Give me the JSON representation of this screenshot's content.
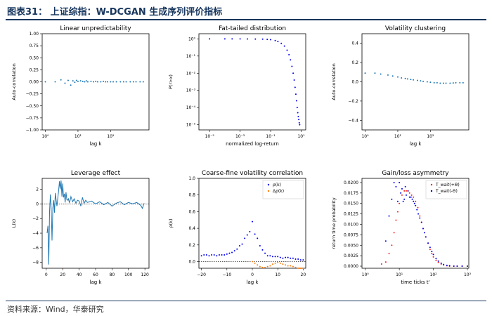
{
  "header": {
    "title": "图表31：  上证综指：W-DCGAN 生成序列评价指标"
  },
  "footer": {
    "source": "资料来源：Wind，华泰研究"
  },
  "colors": {
    "blue": "#1f77b4",
    "points": "#0000ee",
    "orange": "#ff7f0e",
    "red": "#ff2020",
    "navy": "#17365d"
  },
  "chart_data": [
    {
      "type": "scatter",
      "title": "Linear unpredictability",
      "xlabel": "lag k",
      "ylabel": "Auto-correlation",
      "xscale": "log",
      "xlim": [
        0.8,
        1500
      ],
      "ylim": [
        -1.0,
        1.0
      ],
      "xticks": [
        1,
        10,
        100
      ],
      "xticklabels": [
        "10⁰",
        "10¹",
        "10²"
      ],
      "yticks": [
        -1.0,
        -0.75,
        -0.5,
        -0.25,
        0.0,
        0.25,
        0.5,
        0.75,
        1.0
      ],
      "yticklabels": [
        "−1.00",
        "−0.75",
        "−0.50",
        "−0.25",
        "0.00",
        "0.25",
        "0.50",
        "0.75",
        "1.00"
      ],
      "series": [
        {
          "color": "#1f77b4",
          "x": [
            1,
            2,
            3,
            4,
            5,
            6,
            7,
            8,
            9,
            10,
            12,
            14,
            16,
            18,
            20,
            25,
            30,
            35,
            40,
            50,
            60,
            70,
            80,
            100,
            120,
            150,
            200,
            250,
            300,
            400,
            500,
            600,
            800,
            1000
          ],
          "y": [
            0.0,
            0.0,
            0.04,
            -0.03,
            0.03,
            -0.07,
            0.02,
            -0.01,
            0.03,
            0.01,
            0.02,
            0.01,
            0.0,
            0.02,
            0.0,
            0.01,
            0.0,
            0.01,
            0.0,
            0.0,
            0.01,
            0.0,
            0.0,
            0.0,
            0.0,
            0.0,
            0.0,
            0.0,
            0.0,
            0.0,
            0.0,
            0.0,
            0.0,
            0.0
          ]
        }
      ]
    },
    {
      "type": "scatter",
      "title": "Fat-tailed distribution",
      "xlabel": "normalized log-return",
      "ylabel": "P(r>x)",
      "xscale": "log",
      "yscale": "log",
      "xlim": [
        2e-06,
        20
      ],
      "ylim": [
        5e-06,
        2
      ],
      "xticks": [
        1e-05,
        0.001,
        0.1,
        10
      ],
      "xticklabels": [
        "10⁻⁵",
        "10⁻³",
        "10⁻¹",
        "10¹"
      ],
      "yticks": [
        1e-05,
        0.0001,
        0.001,
        0.01,
        0.1,
        1
      ],
      "yticklabels": [
        "10⁻⁵",
        "10⁻⁴",
        "10⁻³",
        "10⁻²",
        "10⁻¹",
        "10⁰"
      ],
      "series": [
        {
          "color": "#0000ee",
          "x": [
            1e-05,
            0.0001,
            0.0003,
            0.001,
            0.003,
            0.01,
            0.03,
            0.06,
            0.1,
            0.2,
            0.3,
            0.5,
            0.8,
            1.2,
            1.6,
            2.0,
            2.5,
            3.0,
            3.5,
            4.0,
            4.5,
            5.0,
            5.5,
            6.0,
            6.5,
            7.0,
            7.5,
            8.0
          ],
          "y": [
            1.0,
            1.0,
            1.0,
            1.0,
            0.99,
            0.98,
            0.96,
            0.93,
            0.9,
            0.8,
            0.7,
            0.55,
            0.38,
            0.22,
            0.12,
            0.06,
            0.025,
            0.01,
            0.004,
            0.0015,
            0.0006,
            0.00025,
            0.0001,
            5e-05,
            3e-05,
            2e-05,
            1.3e-05,
            1e-05
          ]
        }
      ]
    },
    {
      "type": "scatter",
      "title": "Volatility clustering",
      "xlabel": "lag k",
      "ylabel": "Auto-correlation",
      "xscale": "log",
      "xlim": [
        0.8,
        1500
      ],
      "ylim": [
        -0.5,
        0.5
      ],
      "xticks": [
        1,
        10,
        100
      ],
      "xticklabels": [
        "10⁰",
        "10¹",
        "10²"
      ],
      "yticks": [
        -0.4,
        -0.2,
        0.0,
        0.2,
        0.4
      ],
      "yticklabels": [
        "−0.4",
        "−0.2",
        "0.0",
        "0.2",
        "0.4"
      ],
      "series": [
        {
          "color": "#1f77b4",
          "x": [
            1,
            2,
            3,
            5,
            7,
            10,
            13,
            17,
            20,
            25,
            30,
            40,
            50,
            60,
            80,
            100,
            130,
            160,
            200,
            250,
            300,
            400,
            500,
            600,
            800,
            1000
          ],
          "y": [
            0.09,
            0.09,
            0.08,
            0.07,
            0.06,
            0.05,
            0.04,
            0.035,
            0.03,
            0.025,
            0.02,
            0.015,
            0.01,
            0.005,
            0.0,
            -0.005,
            -0.01,
            -0.01,
            -0.015,
            -0.015,
            -0.015,
            -0.015,
            -0.012,
            -0.01,
            -0.01,
            -0.01
          ]
        }
      ]
    },
    {
      "type": "line",
      "title": "Leverage effect",
      "xlabel": "lag k",
      "ylabel": "L(k)",
      "xlim": [
        -5,
        125
      ],
      "ylim": [
        -8.8,
        3.5
      ],
      "xticks": [
        0,
        20,
        40,
        60,
        80,
        100,
        120
      ],
      "xticklabels": [
        "0",
        "20",
        "40",
        "60",
        "80",
        "100",
        "120"
      ],
      "yticks": [
        -8,
        -6,
        -4,
        -2,
        0,
        2
      ],
      "yticklabels": [
        "−8",
        "−6",
        "−4",
        "−2",
        "0",
        "2"
      ],
      "zero_line": true,
      "series": [
        {
          "color": "#1f77b4",
          "x": [
            1,
            2,
            3,
            4,
            5,
            6,
            7,
            8,
            9,
            10,
            11,
            12,
            13,
            14,
            15,
            16,
            17,
            18,
            19,
            20,
            21,
            22,
            23,
            24,
            25,
            26,
            27,
            28,
            29,
            30,
            32,
            34,
            36,
            38,
            40,
            42,
            44,
            46,
            48,
            50,
            55,
            60,
            65,
            70,
            75,
            80,
            85,
            90,
            95,
            100,
            105,
            110,
            115,
            117,
            119
          ],
          "y": [
            -4,
            -3,
            -8.3,
            -1,
            1.3,
            -0.8,
            -5,
            -0.5,
            0.5,
            -1.2,
            1.5,
            0.5,
            -0.3,
            0.8,
            1.8,
            3.1,
            2,
            3.2,
            1,
            2.8,
            0.9,
            1.4,
            0.2,
            1.6,
            0.6,
            0.5,
            0.7,
            0.2,
            0.5,
            1.0,
            0.3,
            0.7,
            0.1,
            0.5,
            0.4,
            -0.3,
            0.9,
            0.1,
            0.5,
            0.2,
            0.4,
            0.0,
            0.3,
            -0.1,
            0.2,
            -0.3,
            0.1,
            0.3,
            -0.1,
            0.2,
            0.0,
            0.2,
            -0.2,
            -0.6,
            0.1
          ]
        }
      ]
    },
    {
      "type": "scatter",
      "title": "Coarse-fine volatility correlation",
      "xlabel": "lag k",
      "ylabel": "ρ(k)",
      "xlim": [
        -21,
        21
      ],
      "ylim": [
        -0.08,
        1.0
      ],
      "xticks": [
        -20,
        -10,
        0,
        10,
        20
      ],
      "xticklabels": [
        "−20",
        "−10",
        "0",
        "10",
        "20"
      ],
      "yticks": [
        0.0,
        0.2,
        0.4,
        0.6,
        0.8,
        1.0
      ],
      "yticklabels": [
        "0.0",
        "0.2",
        "0.4",
        "0.6",
        "0.8",
        "1.0"
      ],
      "zero_line": true,
      "legend": "top-right",
      "series": [
        {
          "name": "ρ(k)",
          "color": "#0000ee",
          "x": [
            -20,
            -19,
            -18,
            -17,
            -16,
            -15,
            -14,
            -13,
            -12,
            -11,
            -10,
            -9,
            -8,
            -7,
            -6,
            -5,
            -4,
            -3,
            -2,
            -1,
            0,
            1,
            2,
            3,
            4,
            5,
            6,
            7,
            8,
            9,
            10,
            11,
            12,
            13,
            14,
            15,
            16,
            17,
            18,
            19,
            20
          ],
          "y": [
            0.07,
            0.08,
            0.08,
            0.07,
            0.08,
            0.08,
            0.07,
            0.08,
            0.08,
            0.08,
            0.09,
            0.1,
            0.11,
            0.13,
            0.15,
            0.19,
            0.21,
            0.28,
            0.32,
            0.36,
            0.48,
            0.33,
            0.28,
            0.19,
            0.14,
            0.1,
            0.07,
            0.07,
            0.06,
            0.06,
            0.06,
            0.05,
            0.04,
            0.05,
            0.05,
            0.04,
            0.04,
            0.03,
            0.03,
            0.02,
            0.02
          ]
        },
        {
          "name": "Δρ(k)",
          "color": "#ff7f0e",
          "x": [
            0,
            1,
            2,
            3,
            4,
            5,
            6,
            7,
            8,
            9,
            10,
            11,
            12,
            13,
            14,
            15,
            16,
            17,
            18,
            19,
            20
          ],
          "y": [
            0.0,
            -0.02,
            -0.04,
            -0.06,
            -0.07,
            -0.07,
            -0.06,
            -0.05,
            -0.03,
            -0.02,
            -0.01,
            -0.02,
            -0.03,
            -0.04,
            -0.05,
            -0.05,
            -0.06,
            -0.07,
            -0.08,
            -0.08,
            -0.08
          ]
        }
      ]
    },
    {
      "type": "scatter",
      "title": "Gain/loss asymmetry",
      "xlabel": "time ticks t'",
      "ylabel": "return time probability",
      "xscale": "log",
      "xlim": [
        0.8,
        1100
      ],
      "ylim": [
        -0.0005,
        0.021
      ],
      "xticks": [
        1,
        10,
        100,
        1000
      ],
      "xticklabels": [
        "10⁰",
        "10¹",
        "10²",
        "10³"
      ],
      "yticks": [
        0.0,
        0.0025,
        0.005,
        0.0075,
        0.01,
        0.0125,
        0.015,
        0.0175,
        0.02
      ],
      "yticklabels": [
        "0.0000",
        "0.0025",
        "0.0050",
        "0.0075",
        "0.0100",
        "0.0125",
        "0.0150",
        "0.0175",
        "0.0200"
      ],
      "legend": "top-right",
      "series": [
        {
          "name": "T_wait(+Θ)",
          "color": "#ff2020",
          "x": [
            3,
            4,
            5,
            6,
            7,
            8,
            9,
            10,
            12,
            14,
            16,
            18,
            20,
            23,
            26,
            30,
            35,
            40,
            45,
            50,
            60,
            70,
            80,
            90,
            100,
            120,
            140,
            170,
            200,
            250,
            300,
            400,
            500,
            700,
            1000
          ],
          "y": [
            0.0005,
            0.001,
            0.003,
            0.005,
            0.008,
            0.011,
            0.013,
            0.015,
            0.017,
            0.018,
            0.018,
            0.018,
            0.0175,
            0.017,
            0.0165,
            0.0155,
            0.014,
            0.012,
            0.0105,
            0.009,
            0.007,
            0.0055,
            0.004,
            0.003,
            0.0022,
            0.0014,
            0.0009,
            0.0005,
            0.0003,
            0.0001,
            0.0,
            0.0,
            0.0,
            0.0,
            0.0
          ]
        },
        {
          "name": "T_wait(-Θ)",
          "color": "#0000ee",
          "x": [
            4,
            5,
            6,
            7,
            8,
            9,
            10,
            11,
            12,
            13,
            14,
            15,
            16,
            18,
            20,
            22,
            24,
            26,
            28,
            30,
            33,
            36,
            40,
            45,
            50,
            55,
            60,
            70,
            80,
            90,
            100,
            120,
            140,
            170,
            200,
            250,
            300,
            400,
            500,
            700,
            1000
          ],
          "y": [
            0.006,
            0.012,
            0.016,
            0.02,
            0.019,
            0.0155,
            0.02,
            0.0175,
            0.0185,
            0.0155,
            0.016,
            0.019,
            0.017,
            0.018,
            0.0165,
            0.0165,
            0.016,
            0.0155,
            0.015,
            0.0145,
            0.0135,
            0.0125,
            0.0115,
            0.0105,
            0.009,
            0.008,
            0.007,
            0.0055,
            0.0045,
            0.0035,
            0.0028,
            0.0018,
            0.0012,
            0.0007,
            0.0004,
            0.0002,
            0.0001,
            0.0,
            0.0,
            0.0,
            0.0
          ]
        }
      ]
    }
  ]
}
